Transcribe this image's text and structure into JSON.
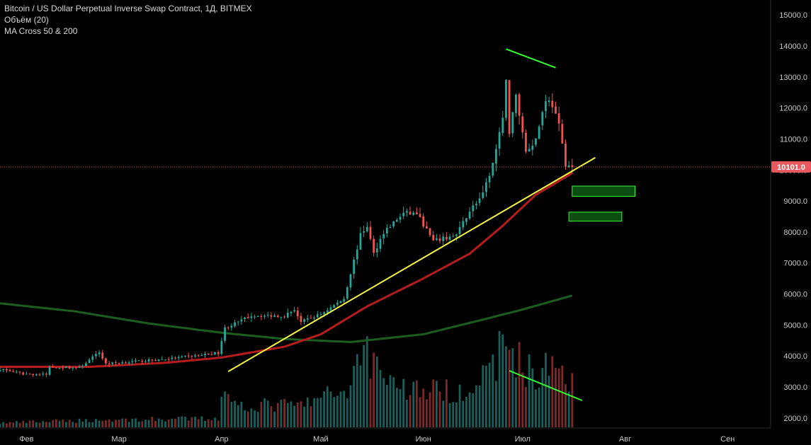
{
  "legend": {
    "title": "Bitcoin / US Dollar Perpetual Inverse Swap Contract, 1Д, BITMEX",
    "volume": "Объём (20)",
    "ma": "MA Cross 50 & 200"
  },
  "last_price": "10101.0",
  "colors": {
    "background": "#000000",
    "up": "#26a69a",
    "down": "#ef5350",
    "vol_up": "#1b5e5a",
    "vol_down": "#7a2a2a",
    "ma50": "#b71c1c",
    "ma200": "#1b5e20",
    "trendline": "#f5f542",
    "green_line": "#33ff33",
    "price_badge": "#e8585c",
    "price_line": "#e8585c",
    "axis_text": "#c8c8c8"
  },
  "chart_data": {
    "type": "candlestick",
    "y_axis": {
      "ticks": [
        2000,
        3000,
        4000,
        5000,
        6000,
        7000,
        8000,
        9000,
        10000,
        11000,
        12000,
        13000,
        14000,
        15000
      ],
      "tick_labels": [
        "2000.0",
        "3000.0",
        "4000.0",
        "5000.0",
        "6000.0",
        "7000.0",
        "8000.0",
        "9000.0",
        "10000.0",
        "11000.0",
        "12000.0",
        "13000.0",
        "14000.0",
        "15000.0"
      ],
      "range": [
        1700,
        15300
      ]
    },
    "x_axis": {
      "start": "2019-01-24",
      "end": "2019-09-14",
      "labels": [
        {
          "date": "2019-02-01",
          "text": "Фев"
        },
        {
          "date": "2019-03-01",
          "text": "Мар"
        },
        {
          "date": "2019-04-01",
          "text": "Апр"
        },
        {
          "date": "2019-05-01",
          "text": "Май"
        },
        {
          "date": "2019-06-01",
          "text": "Июн"
        },
        {
          "date": "2019-07-01",
          "text": "Июл"
        },
        {
          "date": "2019-08-01",
          "text": "Авг"
        },
        {
          "date": "2019-09-01",
          "text": "Сен"
        }
      ]
    },
    "close_keypoints": [
      [
        "2019-01-24",
        3580
      ],
      [
        "2019-01-31",
        3420
      ],
      [
        "2019-02-07",
        3400
      ],
      [
        "2019-02-08",
        3640
      ],
      [
        "2019-02-17",
        3620
      ],
      [
        "2019-02-23",
        4120
      ],
      [
        "2019-02-25",
        3750
      ],
      [
        "2019-03-15",
        3900
      ],
      [
        "2019-03-31",
        4100
      ],
      [
        "2019-04-02",
        4900
      ],
      [
        "2019-04-10",
        5300
      ],
      [
        "2019-04-20",
        5300
      ],
      [
        "2019-04-23",
        5500
      ],
      [
        "2019-04-25",
        5100
      ],
      [
        "2019-05-01",
        5350
      ],
      [
        "2019-05-08",
        5850
      ],
      [
        "2019-05-13",
        7900
      ],
      [
        "2019-05-15",
        8200
      ],
      [
        "2019-05-17",
        7300
      ],
      [
        "2019-05-20",
        8000
      ],
      [
        "2019-05-26",
        8600
      ],
      [
        "2019-05-30",
        8600
      ],
      [
        "2019-06-04",
        7700
      ],
      [
        "2019-06-11",
        7900
      ],
      [
        "2019-06-15",
        8700
      ],
      [
        "2019-06-19",
        9200
      ],
      [
        "2019-06-22",
        10200
      ],
      [
        "2019-06-25",
        11600
      ],
      [
        "2019-06-26",
        13000
      ],
      [
        "2019-06-27",
        11200
      ],
      [
        "2019-06-29",
        12400
      ],
      [
        "2019-07-02",
        10600
      ],
      [
        "2019-07-05",
        11000
      ],
      [
        "2019-07-08",
        12300
      ],
      [
        "2019-07-10",
        12100
      ],
      [
        "2019-07-12",
        11400
      ],
      [
        "2019-07-14",
        10200
      ],
      [
        "2019-07-16",
        10101
      ]
    ],
    "ma50_keypoints": [
      [
        "2019-01-24",
        3650
      ],
      [
        "2019-02-20",
        3650
      ],
      [
        "2019-03-15",
        3780
      ],
      [
        "2019-04-01",
        3950
      ],
      [
        "2019-04-20",
        4300
      ],
      [
        "2019-05-01",
        4700
      ],
      [
        "2019-05-15",
        5600
      ],
      [
        "2019-06-01",
        6500
      ],
      [
        "2019-06-15",
        7300
      ],
      [
        "2019-06-25",
        8200
      ],
      [
        "2019-07-05",
        9200
      ],
      [
        "2019-07-16",
        9900
      ]
    ],
    "ma200_keypoints": [
      [
        "2019-01-24",
        5700
      ],
      [
        "2019-02-15",
        5450
      ],
      [
        "2019-03-10",
        5050
      ],
      [
        "2019-04-01",
        4750
      ],
      [
        "2019-04-20",
        4550
      ],
      [
        "2019-05-10",
        4450
      ],
      [
        "2019-06-01",
        4700
      ],
      [
        "2019-06-20",
        5200
      ],
      [
        "2019-07-01",
        5500
      ],
      [
        "2019-07-16",
        5950
      ]
    ],
    "volume_keypoints": [
      [
        "2019-01-24",
        0.05
      ],
      [
        "2019-02-20",
        0.08
      ],
      [
        "2019-03-31",
        0.1
      ],
      [
        "2019-04-02",
        0.55
      ],
      [
        "2019-04-05",
        0.25
      ],
      [
        "2019-04-25",
        0.25
      ],
      [
        "2019-05-10",
        0.45
      ],
      [
        "2019-05-13",
        0.95
      ],
      [
        "2019-05-17",
        0.75
      ],
      [
        "2019-05-25",
        0.45
      ],
      [
        "2019-06-10",
        0.4
      ],
      [
        "2019-06-20",
        0.55
      ],
      [
        "2019-06-26",
        1.0
      ],
      [
        "2019-06-28",
        0.85
      ],
      [
        "2019-07-05",
        0.55
      ],
      [
        "2019-07-11",
        0.75
      ],
      [
        "2019-07-16",
        0.55
      ]
    ],
    "trendline": {
      "from": [
        "2019-04-03",
        3500
      ],
      "to": [
        "2019-07-23",
        10400
      ]
    },
    "highs_line": {
      "from": [
        "2019-06-26",
        13900
      ],
      "to": [
        "2019-07-11",
        13300
      ]
    },
    "zones": [
      {
        "from": "2019-07-16",
        "to": "2019-08-04",
        "low": 9150,
        "high": 9480
      },
      {
        "from": "2019-07-15",
        "to": "2019-07-31",
        "low": 8350,
        "high": 8640
      }
    ]
  }
}
